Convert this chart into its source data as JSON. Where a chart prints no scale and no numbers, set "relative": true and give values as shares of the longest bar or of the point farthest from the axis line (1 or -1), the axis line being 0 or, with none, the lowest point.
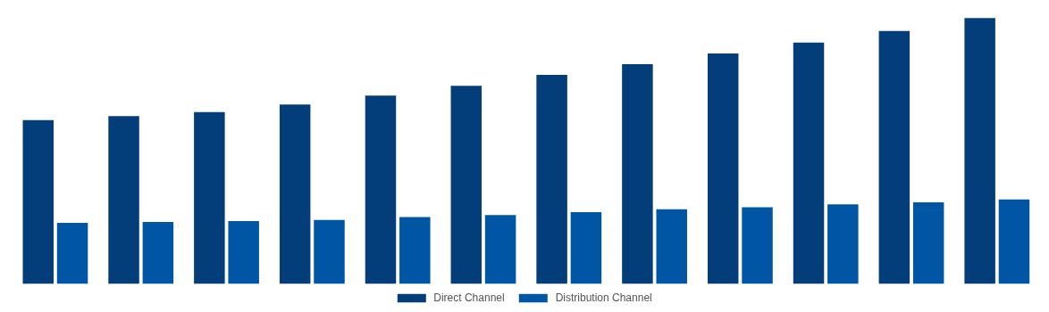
{
  "chart_data": {
    "type": "bar",
    "relative": true,
    "legend": "bottom",
    "categories": [
      null,
      null,
      null,
      null,
      null,
      null,
      null,
      null,
      null,
      null,
      null,
      null
    ],
    "series": [
      {
        "name": "Direct Channel",
        "color": "#033d7a",
        "values": [
          0.616,
          0.631,
          0.646,
          0.675,
          0.708,
          0.745,
          0.786,
          0.827,
          0.867,
          0.908,
          0.952,
          1
        ]
      },
      {
        "name": "Distribution Channel",
        "color": "#0055a5",
        "values": [
          0.229,
          0.232,
          0.236,
          0.24,
          0.251,
          0.258,
          0.269,
          0.28,
          0.288,
          0.299,
          0.306,
          0.317
        ]
      }
    ]
  }
}
